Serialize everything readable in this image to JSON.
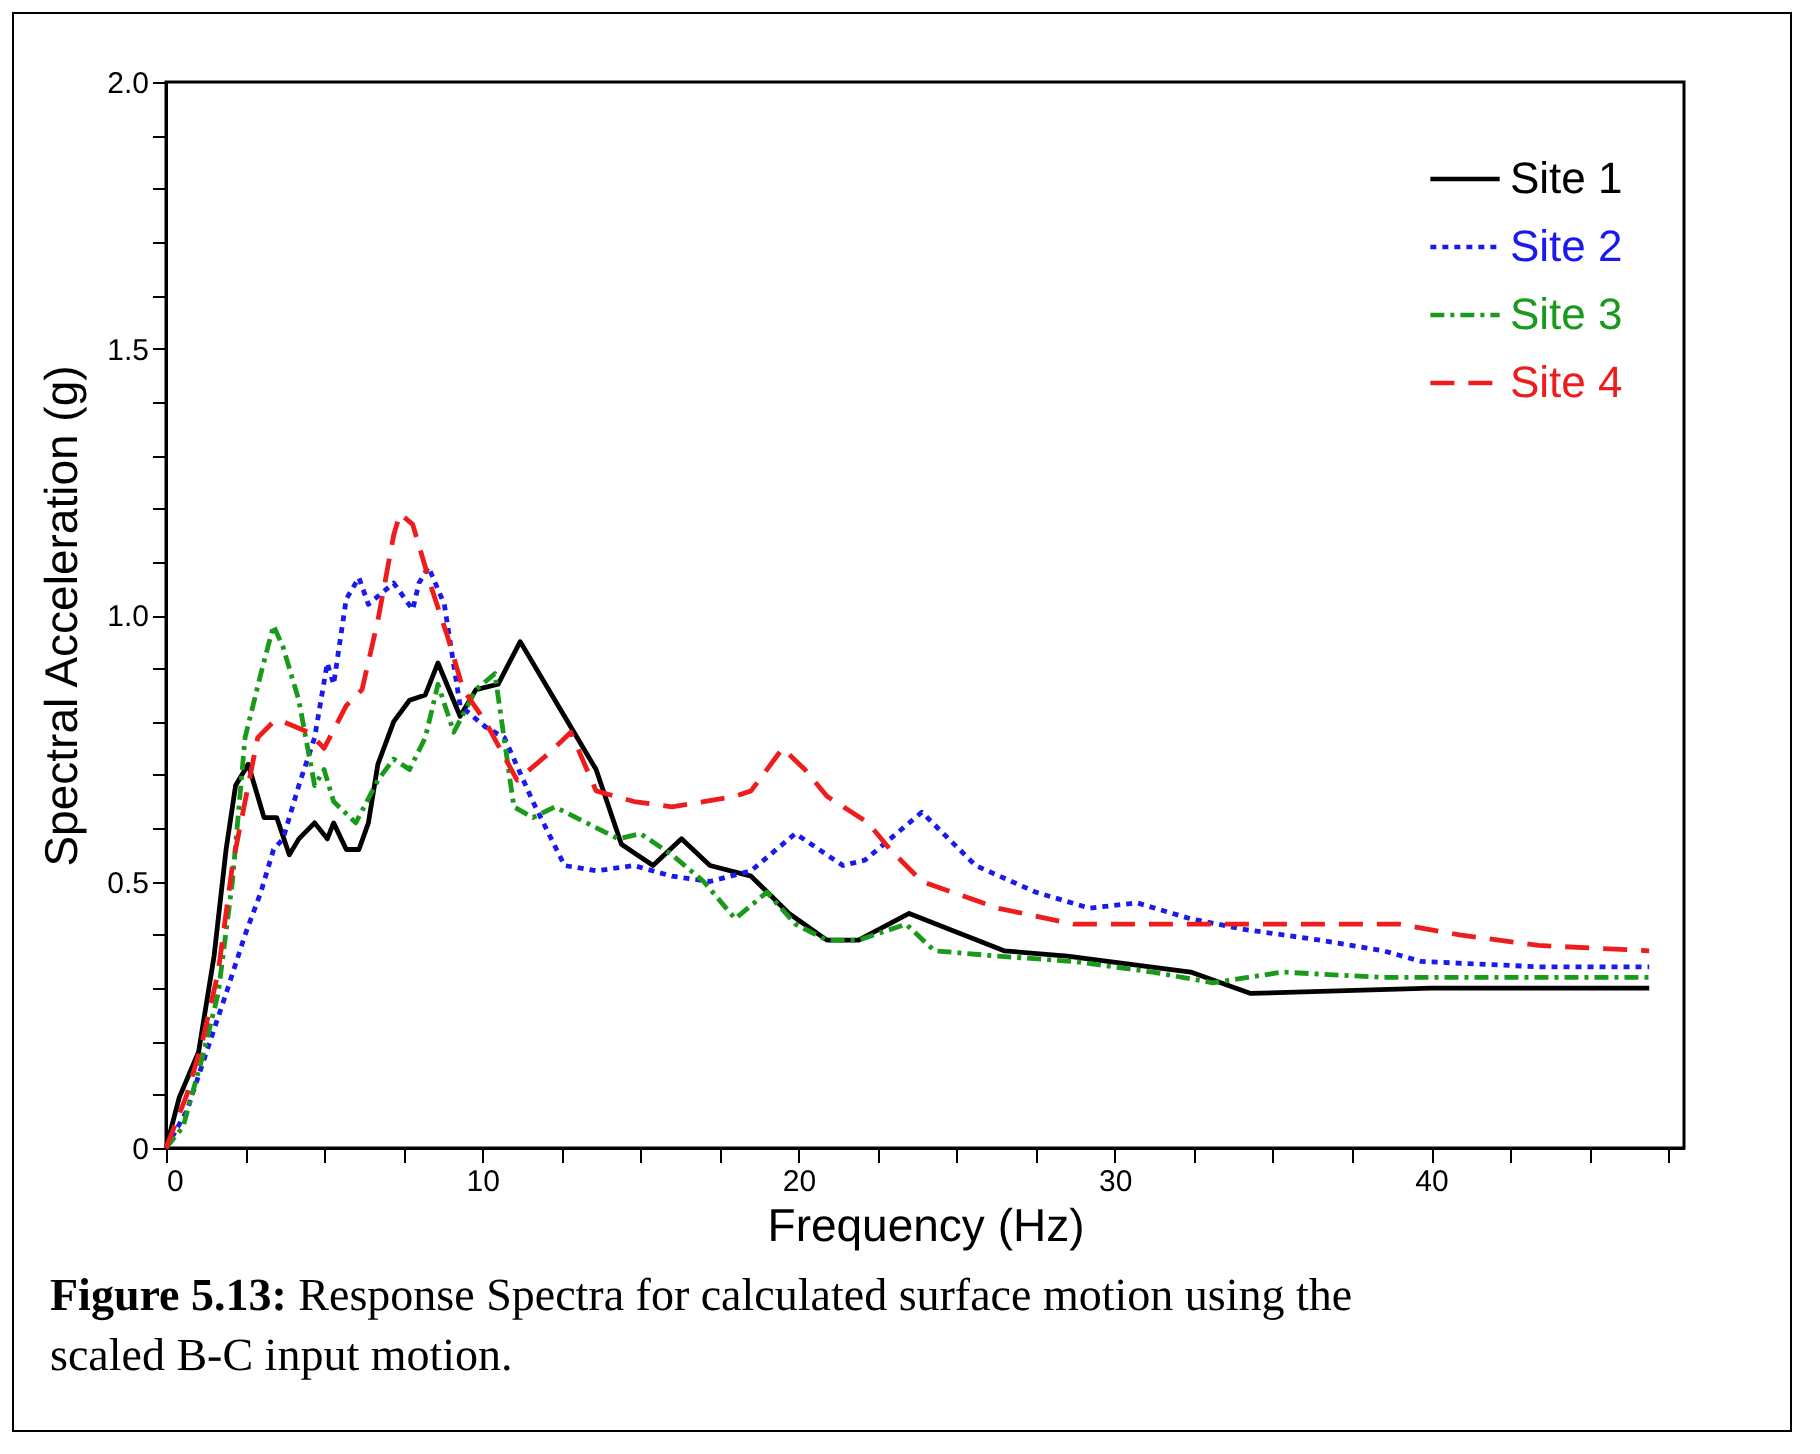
{
  "chart_data": {
    "type": "line",
    "xlabel": "Frequency (Hz)",
    "ylabel": "Spectral Acceleration (g)",
    "xlim": [
      0,
      48
    ],
    "xticks": [
      0,
      {
        "value": 2.5,
        "label": null
      },
      {
        "value": 5,
        "label": null
      },
      {
        "value": 7.5,
        "label": null
      },
      10,
      {
        "value": 12.5,
        "label": null
      },
      {
        "value": 15,
        "label": null
      },
      {
        "value": 17.5,
        "label": null
      },
      20,
      {
        "value": 22.5,
        "label": null
      },
      {
        "value": 25,
        "label": null
      },
      {
        "value": 27.5,
        "label": null
      },
      30,
      {
        "value": 32.5,
        "label": null
      },
      {
        "value": 35,
        "label": null
      },
      {
        "value": 37.5,
        "label": null
      },
      40,
      {
        "value": 42.5,
        "label": null
      },
      {
        "value": 45,
        "label": null
      },
      {
        "value": 47.5,
        "label": null
      }
    ],
    "ylim": [
      0,
      2
    ],
    "yticks": [
      0,
      {
        "value": 0.1,
        "label": null
      },
      {
        "value": 0.2,
        "label": null
      },
      {
        "value": 0.3,
        "label": null
      },
      {
        "value": 0.4,
        "label": null
      },
      0.5,
      {
        "value": 0.6,
        "label": null
      },
      {
        "value": 0.7,
        "label": null
      },
      {
        "value": 0.8,
        "label": null
      },
      {
        "value": 0.9,
        "label": null
      },
      {
        "value": 1,
        "label": "1.0"
      },
      {
        "value": 1.1,
        "label": null
      },
      {
        "value": 1.2,
        "label": null
      },
      {
        "value": 1.3,
        "label": null
      },
      {
        "value": 1.4,
        "label": null
      },
      {
        "value": 1.5,
        "label": "1.5"
      },
      {
        "value": 1.6,
        "label": null
      },
      {
        "value": 1.7,
        "label": null
      },
      {
        "value": 1.8,
        "label": null
      },
      {
        "value": 1.9,
        "label": null
      },
      {
        "value": 2,
        "label": "2.0"
      }
    ],
    "grid": false,
    "legend": "top right",
    "marker": "none",
    "annotations": [
      "Figure 5.13: Response Spectra for calculated surface motion using the scaled B-C input motion."
    ],
    "series": [
      {
        "name": "Site 1",
        "color": "#000000",
        "line_style": "solid",
        "x": [
          0,
          0.42,
          1.03,
          1.52,
          1.9,
          2.2,
          2.6,
          3.1,
          3.5,
          3.9,
          4.2,
          4.7,
          5.1,
          5.3,
          5.7,
          6.1,
          6.4,
          6.7,
          7.2,
          7.7,
          8.2,
          8.6,
          9.3,
          9.8,
          10.5,
          11.2,
          12.6,
          13.6,
          14.4,
          15.4,
          16.3,
          17.2,
          18.5,
          19.7,
          20.9,
          21.9,
          23.5,
          26.5,
          28.5,
          32.4,
          34.3,
          40,
          46.9
        ],
        "values": [
          0,
          0.095,
          0.18,
          0.36,
          0.56,
          0.68,
          0.72,
          0.62,
          0.62,
          0.55,
          0.58,
          0.61,
          0.58,
          0.61,
          0.56,
          0.56,
          0.61,
          0.72,
          0.8,
          0.84,
          0.85,
          0.91,
          0.81,
          0.86,
          0.87,
          0.95,
          0.81,
          0.71,
          0.57,
          0.53,
          0.58,
          0.53,
          0.51,
          0.44,
          0.39,
          0.39,
          0.44,
          0.37,
          0.36,
          0.33,
          0.29,
          0.3,
          0.3
        ]
      },
      {
        "name": "Site 2",
        "color": "#1a1aee",
        "line_style": "dotted",
        "x": [
          0,
          0.66,
          1.28,
          1.9,
          2.5,
          3,
          3.4,
          3.7,
          4.2,
          4.7,
          5.1,
          5.3,
          5.7,
          6.1,
          6.4,
          7.2,
          7.8,
          8,
          8.3,
          8.8,
          9.3,
          10.1,
          10.7,
          11.6,
          12.6,
          13.6,
          14.8,
          16,
          17.2,
          18.5,
          19.9,
          21.4,
          22.1,
          23.9,
          25.6,
          27.5,
          29.2,
          30.7,
          32.4,
          34.1,
          36.5,
          38.5,
          39.7,
          43.4,
          46.9
        ],
        "values": [
          0,
          0.07,
          0.18,
          0.29,
          0.4,
          0.48,
          0.56,
          0.58,
          0.68,
          0.77,
          0.91,
          0.87,
          1.03,
          1.07,
          1.02,
          1.06,
          1.01,
          1.06,
          1.09,
          1.02,
          0.83,
          0.79,
          0.77,
          0.65,
          0.53,
          0.52,
          0.53,
          0.51,
          0.5,
          0.52,
          0.59,
          0.53,
          0.54,
          0.63,
          0.53,
          0.48,
          0.45,
          0.46,
          0.43,
          0.41,
          0.39,
          0.37,
          0.35,
          0.34,
          0.34
        ]
      },
      {
        "name": "Site 3",
        "color": "#1a9a1a",
        "line_style": "dashdot",
        "x": [
          0,
          0.54,
          1.15,
          1.65,
          2.1,
          2.5,
          3,
          3.4,
          3.7,
          4.2,
          4.7,
          5,
          5.3,
          6,
          6.7,
          7.2,
          7.7,
          8.2,
          8.6,
          9.1,
          9.8,
          10.4,
          11,
          11.6,
          12.3,
          13.3,
          14.3,
          15,
          16,
          17,
          18,
          19,
          19.9,
          20.9,
          21.9,
          23.4,
          24.3,
          26.3,
          28.7,
          31.2,
          33.1,
          35.3,
          38.5,
          43.3,
          46.9
        ],
        "values": [
          0,
          0.04,
          0.17,
          0.29,
          0.5,
          0.77,
          0.89,
          0.98,
          0.94,
          0.84,
          0.68,
          0.71,
          0.65,
          0.61,
          0.69,
          0.73,
          0.71,
          0.77,
          0.87,
          0.78,
          0.86,
          0.89,
          0.64,
          0.62,
          0.64,
          0.61,
          0.58,
          0.59,
          0.55,
          0.5,
          0.43,
          0.48,
          0.42,
          0.39,
          0.39,
          0.42,
          0.37,
          0.36,
          0.35,
          0.33,
          0.31,
          0.33,
          0.32,
          0.32,
          0.32
        ]
      },
      {
        "name": "Site 4",
        "color": "#ee1c1c",
        "line_style": "dashed",
        "x": [
          0,
          0.66,
          1.15,
          1.65,
          2.1,
          2.6,
          2.9,
          3.4,
          3.7,
          4.5,
          5,
          5.7,
          6.2,
          6.7,
          7.2,
          7.4,
          7.8,
          8.4,
          8.9,
          9.4,
          10.1,
          11.1,
          12.1,
          12.8,
          13.6,
          14.8,
          16,
          18,
          18.5,
          19.5,
          20.2,
          20.9,
          22.2,
          22.9,
          23.9,
          26.3,
          28.7,
          31.2,
          33.6,
          36,
          39,
          40.9,
          43.4,
          46.9
        ],
        "values": [
          0,
          0.1,
          0.2,
          0.33,
          0.53,
          0.68,
          0.77,
          0.8,
          0.8,
          0.78,
          0.75,
          0.83,
          0.86,
          0.99,
          1.15,
          1.19,
          1.17,
          1.05,
          0.96,
          0.86,
          0.8,
          0.69,
          0.74,
          0.78,
          0.67,
          0.65,
          0.64,
          0.66,
          0.67,
          0.75,
          0.71,
          0.66,
          0.61,
          0.56,
          0.5,
          0.45,
          0.42,
          0.42,
          0.42,
          0.42,
          0.42,
          0.4,
          0.38,
          0.37
        ]
      }
    ]
  }
}
